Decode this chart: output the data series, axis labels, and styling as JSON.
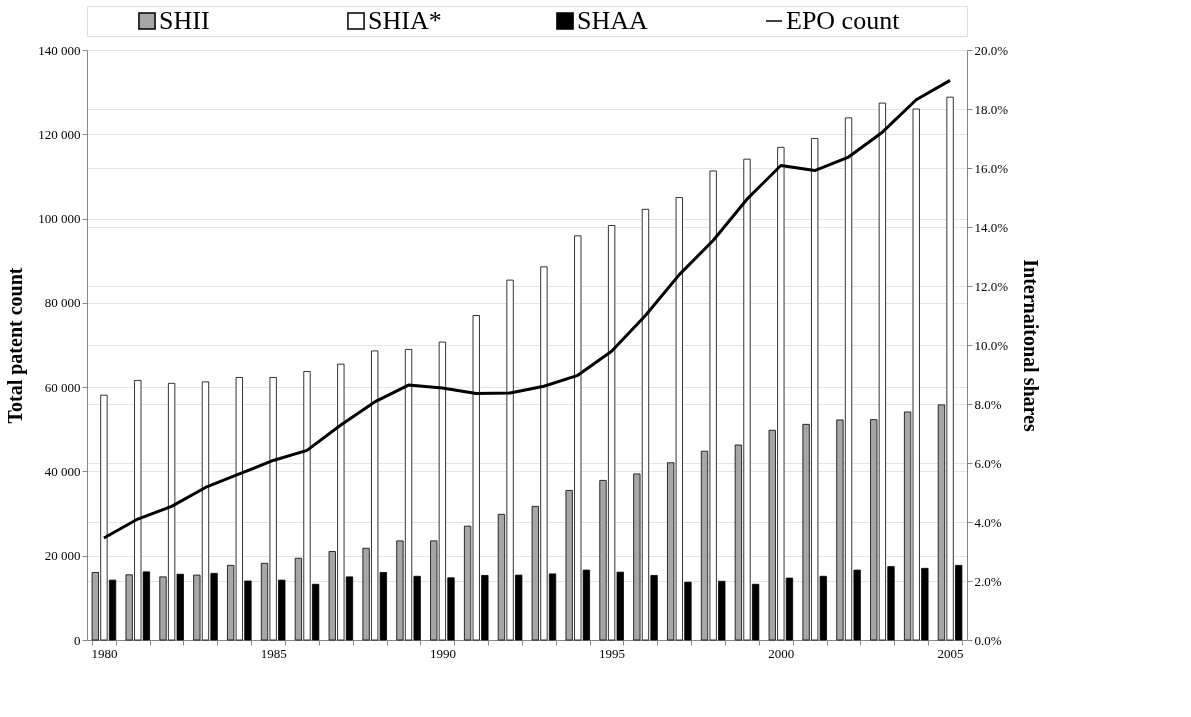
{
  "chart_data": {
    "type": "bar",
    "categories": [
      "1980",
      null,
      null,
      null,
      null,
      "1985",
      null,
      null,
      null,
      null,
      "1990",
      null,
      null,
      null,
      null,
      "1995",
      null,
      null,
      null,
      null,
      "2000",
      null,
      null,
      null,
      null,
      "2005"
    ],
    "ylabel": "Total patent count",
    "y2label": "Internaitonal shares",
    "ylim": [
      0,
      140000
    ],
    "yticks": [
      0,
      {
        "value": 20000,
        "label": "20 000"
      },
      {
        "value": 40000,
        "label": "40 000"
      },
      {
        "value": 60000,
        "label": "60 000"
      },
      {
        "value": 80000,
        "label": "80 000"
      },
      {
        "value": 100000,
        "label": "100 000"
      },
      {
        "value": 120000,
        "label": "120 000"
      },
      {
        "value": 140000,
        "label": "140 000"
      }
    ],
    "y2lim": [
      0,
      20
    ],
    "y2ticks": [
      {
        "value": 0,
        "label": "0.0%"
      },
      {
        "value": 2,
        "label": "2.0%"
      },
      {
        "value": 4,
        "label": "4.0%"
      },
      {
        "value": 6,
        "label": "6.0%"
      },
      {
        "value": 8,
        "label": "8.0%"
      },
      {
        "value": 10,
        "label": "10.0%"
      },
      {
        "value": 12,
        "label": "12.0%"
      },
      {
        "value": 14,
        "label": "14.0%"
      },
      {
        "value": 16,
        "label": "16.0%"
      },
      {
        "value": 18,
        "label": "18.0%"
      },
      {
        "value": 20,
        "label": "20.0%"
      }
    ],
    "grid": "y",
    "legend": "top",
    "series": [
      {
        "name": "SHII",
        "axis": "y2",
        "color": "#a6a6a6",
        "values": [
          2.29,
          2.21,
          2.14,
          2.2,
          2.53,
          2.6,
          2.77,
          3.0,
          3.11,
          3.36,
          3.36,
          3.86,
          4.26,
          4.53,
          5.07,
          5.41,
          5.63,
          6.01,
          6.4,
          6.61,
          7.11,
          7.31,
          7.46,
          7.47,
          7.73,
          7.97
        ]
      },
      {
        "name": "SHIA*",
        "axis": "y2",
        "color": "#ffffff",
        "values": [
          8.3,
          8.8,
          8.7,
          8.75,
          8.9,
          8.9,
          9.1,
          9.35,
          9.8,
          9.85,
          10.1,
          11.0,
          12.2,
          12.65,
          13.7,
          14.05,
          14.6,
          15.0,
          15.9,
          16.3,
          16.7,
          17.0,
          17.7,
          18.2,
          18.0,
          18.4
        ]
      },
      {
        "name": "SHAA",
        "axis": "y2",
        "color": "#000000",
        "values": [
          2.03,
          2.31,
          2.23,
          2.26,
          2.0,
          2.03,
          1.89,
          2.14,
          2.29,
          2.16,
          2.11,
          2.19,
          2.2,
          2.24,
          2.37,
          2.3,
          2.19,
          1.96,
          1.99,
          1.89,
          2.1,
          2.16,
          2.37,
          2.49,
          2.43,
          2.53
        ]
      },
      {
        "name": "EPO count",
        "type": "line",
        "axis": "y",
        "color": "#000000",
        "values": [
          24200,
          28700,
          31700,
          36200,
          39400,
          42600,
          45000,
          51000,
          56500,
          60500,
          59800,
          58500,
          58600,
          60200,
          62800,
          68500,
          77000,
          86700,
          94800,
          104600,
          112600,
          111400,
          114600,
          120500,
          128200,
          132800
        ]
      }
    ]
  }
}
